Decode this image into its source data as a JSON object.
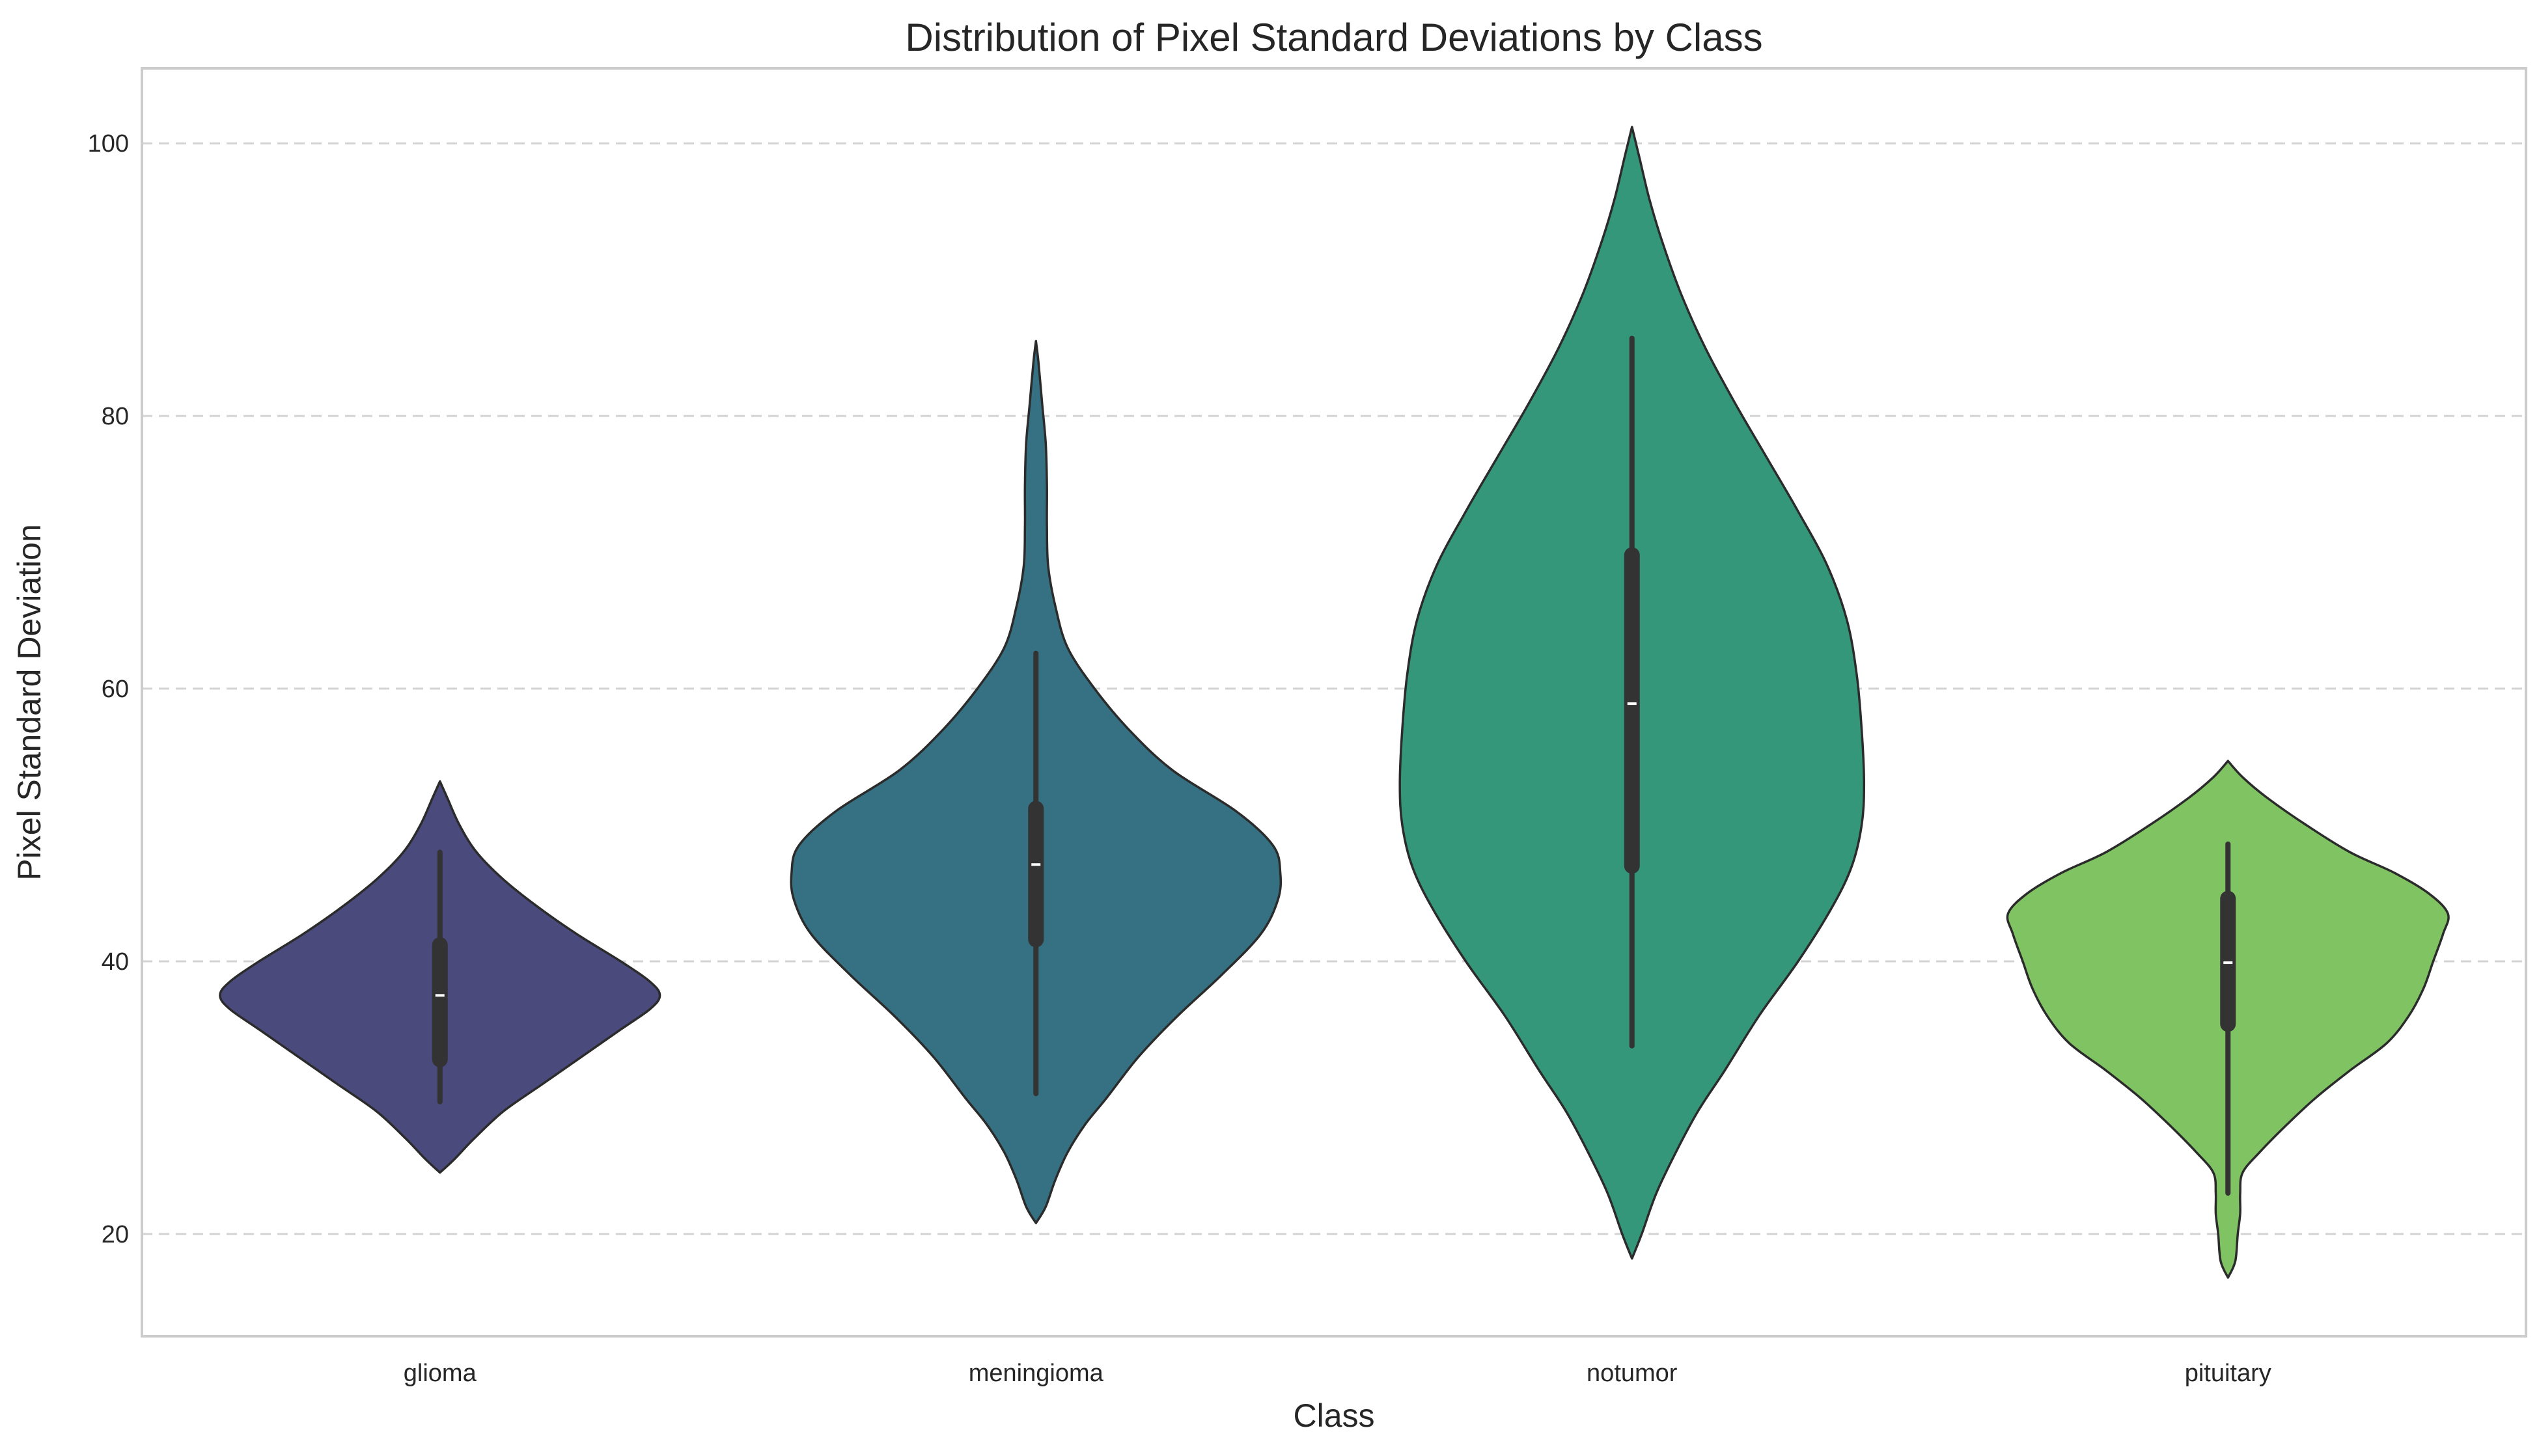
{
  "chart_data": {
    "type": "violin",
    "title": "Distribution of Pixel Standard Deviations by Class",
    "xlabel": "Class",
    "ylabel": "Pixel Standard Deviation",
    "ylim": [
      12.5,
      105.5
    ],
    "yticks": [
      20,
      40,
      60,
      80,
      100
    ],
    "grid": "y-dashed",
    "categories": [
      "glioma",
      "meningioma",
      "notumor",
      "pituitary"
    ],
    "colors": [
      "#4a4a7c",
      "#357182",
      "#34977a",
      "#80c362"
    ],
    "violins": [
      {
        "category": "glioma",
        "min": 24.5,
        "max": 53.2,
        "whisker_low": 29.7,
        "whisker_high": 48.0,
        "q1": 32.8,
        "median": 37.5,
        "q3": 41.2,
        "profile": [
          [
            24.5,
            0
          ],
          [
            25.5,
            0.06
          ],
          [
            27,
            0.14
          ],
          [
            29,
            0.26
          ],
          [
            31,
            0.42
          ],
          [
            33,
            0.58
          ],
          [
            35,
            0.74
          ],
          [
            36.5,
            0.86
          ],
          [
            37.5,
            0.9
          ],
          [
            38.5,
            0.86
          ],
          [
            40,
            0.74
          ],
          [
            42,
            0.56
          ],
          [
            44,
            0.4
          ],
          [
            46,
            0.26
          ],
          [
            48,
            0.15
          ],
          [
            50,
            0.08
          ],
          [
            52,
            0.03
          ],
          [
            53.2,
            0
          ]
        ]
      },
      {
        "category": "meningioma",
        "min": 20.8,
        "max": 85.5,
        "whisker_low": 30.3,
        "whisker_high": 62.6,
        "q1": 41.6,
        "median": 47.1,
        "q3": 51.2,
        "profile": [
          [
            20.8,
            0
          ],
          [
            22,
            0.04
          ],
          [
            24,
            0.08
          ],
          [
            26,
            0.13
          ],
          [
            28,
            0.2
          ],
          [
            30,
            0.29
          ],
          [
            33,
            0.42
          ],
          [
            36,
            0.58
          ],
          [
            39,
            0.76
          ],
          [
            42,
            0.92
          ],
          [
            44.5,
            0.99
          ],
          [
            46.5,
            1.0
          ],
          [
            48.5,
            0.97
          ],
          [
            51,
            0.82
          ],
          [
            54,
            0.56
          ],
          [
            57,
            0.38
          ],
          [
            60,
            0.24
          ],
          [
            63,
            0.13
          ],
          [
            66,
            0.08
          ],
          [
            69,
            0.05
          ],
          [
            72,
            0.045
          ],
          [
            75,
            0.045
          ],
          [
            78,
            0.04
          ],
          [
            81,
            0.025
          ],
          [
            84,
            0.01
          ],
          [
            85.5,
            0
          ]
        ]
      },
      {
        "category": "notumor",
        "min": 18.2,
        "max": 101.2,
        "whisker_low": 33.8,
        "whisker_high": 85.7,
        "q1": 47.0,
        "median": 58.9,
        "q3": 69.8,
        "profile": [
          [
            18.2,
            0
          ],
          [
            20,
            0.04
          ],
          [
            23,
            0.1
          ],
          [
            26,
            0.18
          ],
          [
            29,
            0.27
          ],
          [
            32,
            0.38
          ],
          [
            36,
            0.52
          ],
          [
            40,
            0.68
          ],
          [
            44,
            0.82
          ],
          [
            47,
            0.9
          ],
          [
            50,
            0.94
          ],
          [
            53,
            0.95
          ],
          [
            57,
            0.94
          ],
          [
            61,
            0.92
          ],
          [
            65,
            0.88
          ],
          [
            69,
            0.8
          ],
          [
            73,
            0.68
          ],
          [
            77,
            0.55
          ],
          [
            81,
            0.42
          ],
          [
            85,
            0.3
          ],
          [
            89,
            0.2
          ],
          [
            93,
            0.12
          ],
          [
            96,
            0.07
          ],
          [
            99,
            0.03
          ],
          [
            101.2,
            0
          ]
        ]
      },
      {
        "category": "pituitary",
        "min": 16.8,
        "max": 54.7,
        "whisker_low": 23.0,
        "whisker_high": 48.6,
        "q1": 35.4,
        "median": 39.9,
        "q3": 44.6,
        "profile": [
          [
            16.8,
            0
          ],
          [
            18,
            0.03
          ],
          [
            20,
            0.04
          ],
          [
            21.5,
            0.05
          ],
          [
            23,
            0.05
          ],
          [
            24.5,
            0.06
          ],
          [
            26,
            0.13
          ],
          [
            28,
            0.24
          ],
          [
            30,
            0.36
          ],
          [
            32,
            0.5
          ],
          [
            34,
            0.65
          ],
          [
            36,
            0.74
          ],
          [
            38,
            0.8
          ],
          [
            40,
            0.84
          ],
          [
            42,
            0.88
          ],
          [
            43.5,
            0.9
          ],
          [
            45,
            0.82
          ],
          [
            46.5,
            0.68
          ],
          [
            48,
            0.5
          ],
          [
            50,
            0.32
          ],
          [
            52,
            0.16
          ],
          [
            53.5,
            0.06
          ],
          [
            54.7,
            0
          ]
        ]
      }
    ]
  }
}
